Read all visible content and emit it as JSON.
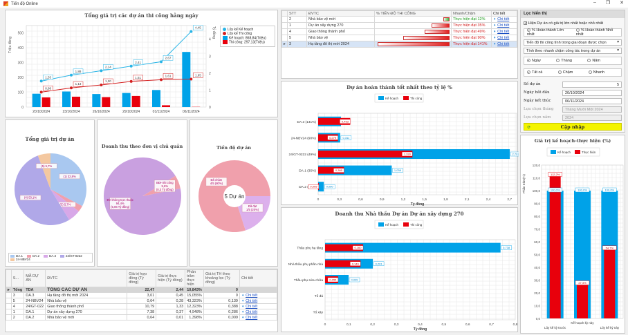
{
  "window": {
    "title": "Tiến độ Online",
    "controls": [
      "–",
      "❐",
      "✕"
    ]
  },
  "colors": {
    "plan": "#00a2e8",
    "actual": "#e8000c",
    "plan_line": "#28b4e6",
    "actual_line": "#d42020",
    "pink": "#f0a0ac",
    "lavender": "#c9a6e8",
    "update_btn": "#f4f400"
  },
  "combo_chart": {
    "title": "Tổng giá trị các dự án thi công hằng ngày",
    "ylabel_left": "Triệu đồng",
    "ylabel_right": "Tỷ đồng",
    "legend": [
      "Lũy kế Kế hoạch",
      "Lũy kế Thi công",
      "Kế hoạch: 868,84(Triệu)",
      "Thi công: 297,13(Triệu)"
    ],
    "yticks_left": [
      "0",
      "100",
      "200",
      "300",
      "400",
      "500"
    ],
    "yticks_right": [
      "0",
      "1",
      "2",
      "3",
      "4"
    ]
  },
  "chart_data": [
    {
      "type": "bar",
      "title": "Tổng giá trị các dự án thi công hằng ngày",
      "categories": [
        "20/10/2024",
        "23/10/2024",
        "26/10/2024",
        "29/10/2024",
        "01/11/2024",
        "06/11/2024"
      ],
      "series": [
        {
          "name": "Kế hoạch",
          "axis": "left",
          "values": [
            90,
            105,
            88,
            95,
            115,
            372
          ]
        },
        {
          "name": "Thi công",
          "axis": "left",
          "values": [
            65,
            70,
            67,
            75,
            12,
            1.5
          ]
        },
        {
          "name": "Lũy kế Kế hoạch",
          "type": "line",
          "axis": "right",
          "values": [
            1.53,
            1.88,
            2.14,
            2.41,
            2.67,
            4.45
          ]
        },
        {
          "name": "Lũy kế Thi công",
          "type": "line",
          "axis": "right",
          "values": [
            0.88,
            1.13,
            1.3,
            1.51,
            1.61,
            1.65
          ]
        }
      ],
      "ylim_left": [
        0,
        550
      ],
      "ylim_right": [
        0,
        4.8
      ],
      "ylabel": "Triệu đồng",
      "y2label": "Tỷ đồng",
      "grid": true,
      "legend": "right"
    },
    {
      "type": "pie",
      "title": "Tổng giá trị dự án",
      "categories": [
        "DA.1",
        "DA.2",
        "DA.3",
        "24/GT-0222",
        "24-NBV24"
      ],
      "values": [
        32.8,
        2.8,
        5.7,
        53.1,
        5.7
      ],
      "labels": [
        "(1) 32,8%",
        "(2) 2,8%",
        "(3) 5,7%",
        "(4) 53,1%",
        "(5) 5,7%"
      ],
      "legend": "bottom"
    },
    {
      "type": "pie",
      "title": "Doanh thu theo đơn vị chủ quản",
      "categories": [
        "ĐV không trực thuộc",
        "BĐH thi công"
      ],
      "values": [
        94.4,
        5.6
      ],
      "labels": [
        "ĐV không trực thuộc\n94,4%\n(5,06 Tỷ đồng)",
        "BĐH thi công\n5,6%\n(0,3 Tỷ đồng)"
      ]
    },
    {
      "type": "pie",
      "title": "Tiến độ dự án",
      "center_label": "5 Dự án",
      "categories": [
        "Đã chậm",
        "Đã đạt"
      ],
      "values": [
        80,
        20
      ],
      "labels": [
        "Đã chậm\n4/5 (80%)",
        "Đã đạt\n1/5 (20%)"
      ]
    },
    {
      "type": "bar",
      "orientation": "horizontal",
      "title": "Dự án hoàn thành tốt nhất theo tỷ lệ %",
      "categories": [
        "DA.3 (141%)",
        "24-NBV24 (90%)",
        "24/GT-0222 (49%)",
        "DA.1 (35%)",
        "DA.2 (12%)"
      ],
      "series": [
        {
          "name": "Kế hoạch",
          "values": [
            0.322,
            0.311,
            2.703,
            1.038,
            0.08
          ]
        },
        {
          "name": "Thi công",
          "values": [
            0.453,
            0.279,
            1.33,
            0.365,
            0.009
          ]
        }
      ],
      "value_labels": {
        "Kế hoạch": [
          "",
          "0,311",
          "2,703",
          "1,038",
          "0,080"
        ],
        "Thi công": [
          "0,453",
          "0,279",
          "1,330",
          "0,365",
          "0,009"
        ]
      },
      "xlabel": "Tỷ đồng",
      "xlim": [
        0,
        2.8
      ],
      "xticks": [
        "0",
        "0,3",
        "0,6",
        "0,9",
        "1,2",
        "1,5",
        "1,8",
        "2,1",
        "2,4",
        "2,7"
      ],
      "legend": "top"
    },
    {
      "type": "bar",
      "orientation": "horizontal",
      "title": "Doanh thu Nhà thầu Dự án Dự án xây dựng 270",
      "categories": [
        "Thầu phụ hạ tầng",
        "Nhà thầu phụ phần nhà",
        "Thầu phụ sửa chữa",
        "Tổ đá",
        "Tổ xây"
      ],
      "series": [
        {
          "name": "Kế hoạch",
          "values": [
            0.738,
            0.201,
            0.099,
            0,
            0
          ]
        },
        {
          "name": "Thi công",
          "values": [
            0.16,
            0.149,
            0.055,
            0,
            0
          ]
        }
      ],
      "value_labels": {
        "Kế hoạch": [
          "0,738",
          "0,201",
          "0,099",
          "",
          ""
        ],
        "Thi công": [
          "0,160",
          "0,149",
          "0,055",
          "",
          ""
        ]
      },
      "xlabel": "Tỷ đồng",
      "xlim": [
        0,
        0.8
      ],
      "xticks": [
        "0",
        "0,1",
        "0,2",
        "0,3",
        "0,4",
        "0,5",
        "0,6",
        "0,7",
        "0,8"
      ],
      "legend": "top"
    },
    {
      "type": "bar",
      "title": "Giá trị kế hoạch-thực hiện (%)",
      "categories": [
        "Lũy kế kỳ trước",
        "Kế hoạch kỳ này",
        "Lũy kế kỳ này"
      ],
      "series": [
        {
          "name": "Kế hoạch",
          "values": [
            100,
            100,
            100
          ]
        },
        {
          "name": "Thực hiện",
          "values": [
            112.2,
            27.3,
            54.7
          ]
        }
      ],
      "value_labels": {
        "Kế hoạch": [
          "100,0%",
          "100,0%",
          "100,0%"
        ],
        "Thực hiện": [
          "112,2%",
          "27,3%",
          "54,7%"
        ]
      },
      "ylabel": "Phần trăm(%)",
      "ylim": [
        0,
        120
      ],
      "yticks": [
        "0,0",
        "10,0",
        "20,0",
        "30,0",
        "40,0",
        "50,0",
        "60,0",
        "70,0",
        "80,0",
        "90,0",
        "100,0",
        "110,0",
        "120,0"
      ],
      "legend": "top"
    }
  ],
  "pie1_legend": [
    "DA.1",
    "DA.2",
    "DA.3",
    "24/GT-0222",
    "24-NBV24"
  ],
  "progress_grid": {
    "headers": [
      "STT",
      "ĐVTC",
      "% TIẾN ĐỘ THI CÔNG",
      "Nhanh/Chậm",
      "Chi tiết"
    ],
    "rows": [
      {
        "stt": "2",
        "name": "Nhà bảo vệ mới",
        "progress": 12,
        "status": "Thực hiện đạt 12%",
        "status_color": "#1a9a1a",
        "link": "Chi tiết"
      },
      {
        "stt": "1",
        "name": "Dự án xây dựng 270",
        "progress": 35,
        "status": "Thực hiện đạt 35%",
        "status_color": "#d42020",
        "link": "Chi tiết"
      },
      {
        "stt": "4",
        "name": "Giao thông thành phố",
        "progress": 49,
        "status": "Thực hiện đạt 49%",
        "status_color": "#d42020",
        "link": "Chi tiết"
      },
      {
        "stt": "5",
        "name": "Nhà bảo vệ",
        "progress": 90,
        "status": "Thực hiện đạt 90%",
        "status_color": "#d42020",
        "link": "Chi tiết"
      },
      {
        "stt": "3",
        "name": "Hạ tầng đô thị mới 2024",
        "progress": 141,
        "status": "Thực hiện đạt 141%",
        "status_color": "#d42020",
        "link": "Chi tiết",
        "selected": true
      }
    ]
  },
  "filter": {
    "header": "Lọc hiển thị",
    "show_extreme": "Hiện Dự án có giá trị lớn nhất hoặc nhỏ nhất",
    "radio_max": "% Hoàn thành Lớn nhất",
    "radio_min": "% Hoàn thành Nhỏ nhất",
    "dropdown1": "Tiến độ thi công tính trong giai đoạn được chọn",
    "dropdown2": "Tính theo nhanh chậm công tác trong dự án",
    "period": [
      "Ngày",
      "Tháng",
      "Năm"
    ],
    "speed": [
      "Tất cả",
      "Chậm",
      "Nhanh"
    ],
    "count_label": "Số dự án",
    "count_value": "5",
    "start_label": "Ngày bắt đầu",
    "start_value": "20/10/2024",
    "end_label": "Ngày kết thúc",
    "end_value": "06/11/2024",
    "month_label": "Lựa chọn tháng",
    "month_value": "Tháng Mười Một 2024",
    "year_label": "Lựa chọn năm",
    "year_value": "2024",
    "update_label": "Cập nhập"
  },
  "summary_table": {
    "headers": [
      "S...",
      "MÃ DỰ ÁN",
      "ĐVTC",
      "Giá trị hợp đồng (Tỷ đồng)",
      "Giá trị thực hiện (Tỷ đồng)",
      "Phần trăm thực hiện",
      "Giá trị TH theo khoảng lọc (Tỷ đồng)",
      "Chi tiết"
    ],
    "total": {
      "s": "Tổng",
      "code": "TDA",
      "name": "TỔNG CÁC DỰ ÁN",
      "contract": "22,47",
      "done": "2,44",
      "pct": "10,843%",
      "filtered": "0"
    },
    "rows": [
      {
        "s": "3",
        "code": "DA.3",
        "name": "Hạ tầng đô thị mới 2024",
        "contract": "3,01",
        "done": "0,45",
        "pct": "15,055%",
        "filtered": "0",
        "link": "Chi tiết"
      },
      {
        "s": "5",
        "code": "24-NBV24",
        "name": "Nhà bảo vệ",
        "contract": "0,64",
        "done": "0,28",
        "pct": "43,323%",
        "filtered": "0,139",
        "link": "Chi tiết"
      },
      {
        "s": "4",
        "code": "24/GT-022",
        "name": "Giao thông thành phố",
        "contract": "10,79",
        "done": "1,33",
        "pct": "12,323%",
        "filtered": "0,388",
        "link": "Chi tiết"
      },
      {
        "s": "1",
        "code": "DA.1",
        "name": "Dự án xây dựng 270",
        "contract": "7,38",
        "done": "0,37",
        "pct": "4,948%",
        "filtered": "0,286",
        "link": "Chi tiết"
      },
      {
        "s": "2",
        "code": "DA.2",
        "name": "Nhà bảo vệ mới",
        "contract": "0,64",
        "done": "0,01",
        "pct": "1,398%",
        "filtered": "0,009",
        "link": "Chi tiết"
      }
    ]
  }
}
